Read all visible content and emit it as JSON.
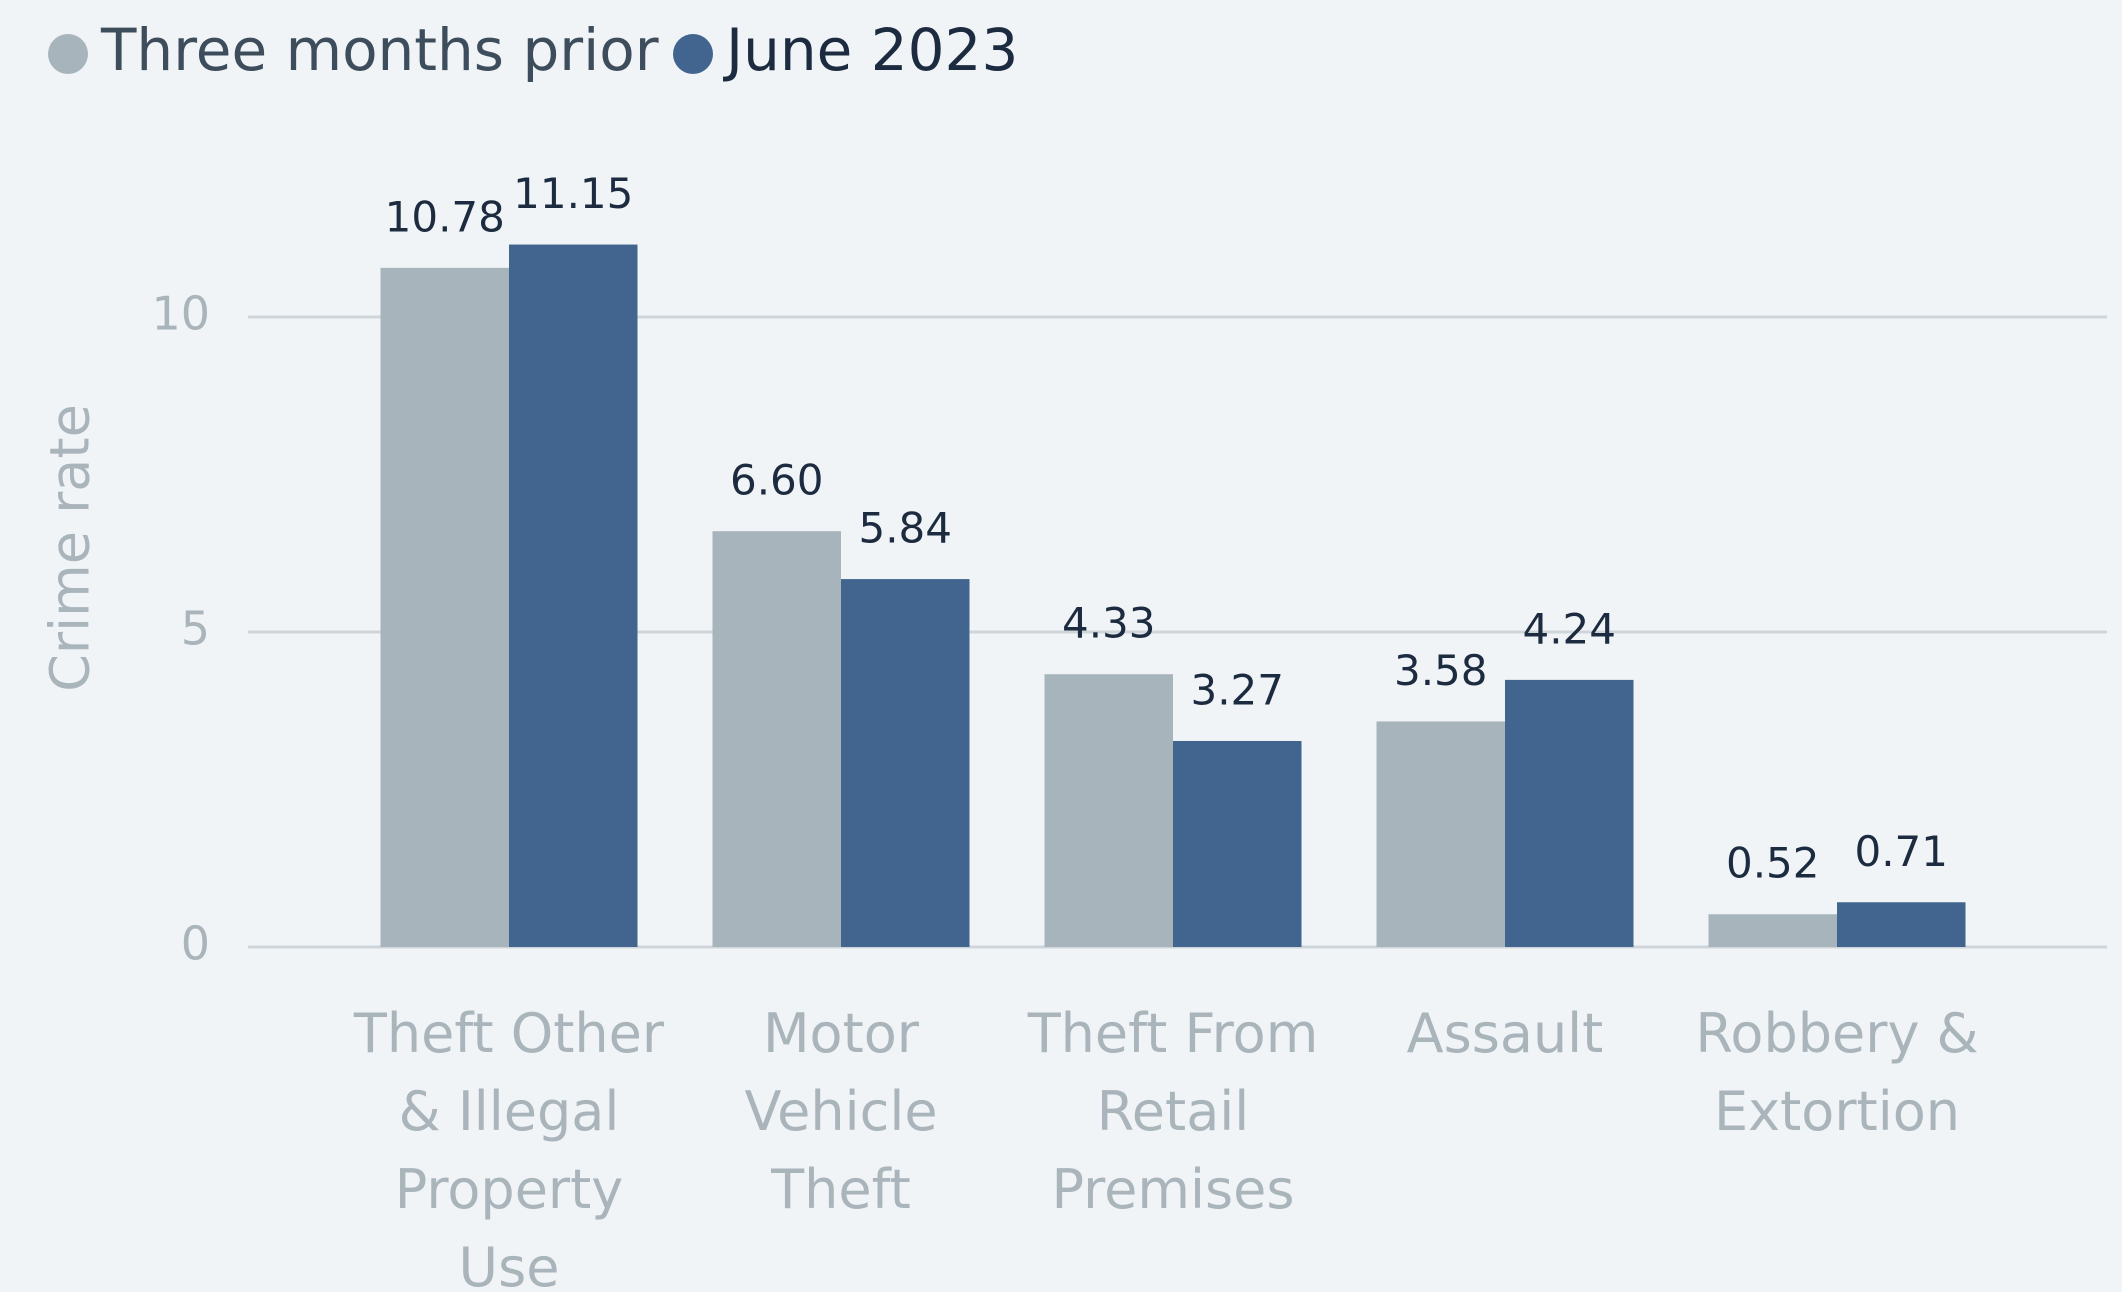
{
  "chart_data": {
    "type": "bar",
    "y_label": "Crime rate",
    "categories": [
      "Theft Other & Illegal Property Use",
      "Motor Vehicle Theft",
      "Theft From Retail Premises",
      "Assault",
      "Robbery & Extortion"
    ],
    "series": [
      {
        "name": "Three months prior",
        "color": "#a7b4bc",
        "values": [
          10.78,
          6.6,
          4.33,
          3.58,
          0.52
        ],
        "value_labels": [
          "10.78",
          "6.60",
          "4.33",
          "3.58",
          "0.52"
        ]
      },
      {
        "name": "June 2023",
        "color": "#41658e",
        "values": [
          11.15,
          5.84,
          3.27,
          4.24,
          0.71
        ],
        "value_labels": [
          "11.15",
          "5.84",
          "3.27",
          "4.24",
          "0.71"
        ]
      }
    ],
    "ylim": [
      0,
      12
    ],
    "yticks": [
      0,
      5,
      10
    ],
    "grid": true,
    "legend": "top-left"
  }
}
